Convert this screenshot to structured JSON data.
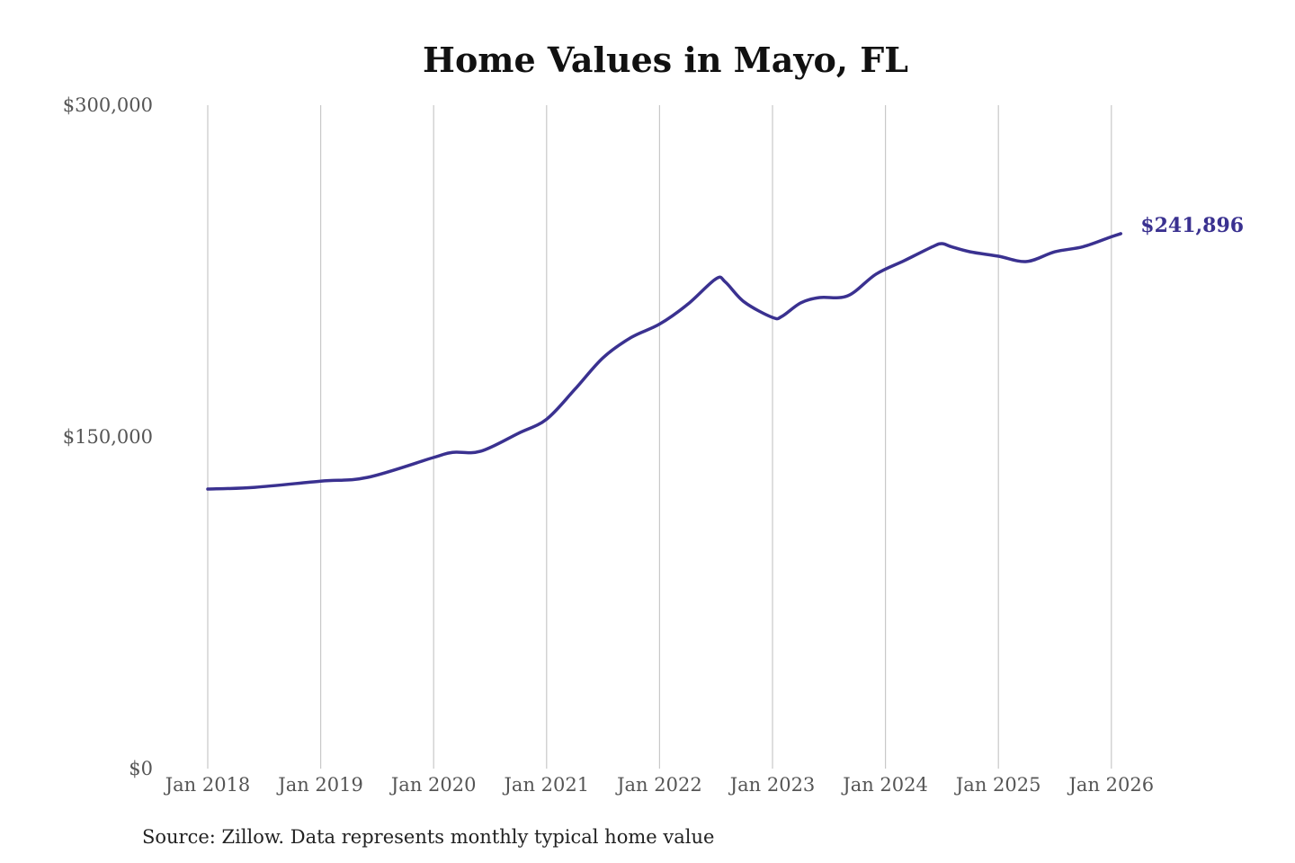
{
  "chart_data": {
    "type": "line",
    "title": "Home Values in Mayo, FL",
    "source": "Source: Zillow. Data represents monthly typical home value",
    "xlabel": "",
    "ylabel": "",
    "ylim": [
      0,
      300000
    ],
    "y_ticks": [
      0,
      150000,
      300000
    ],
    "y_tick_labels": [
      "$0",
      "$150,000",
      "$300,000"
    ],
    "x_ticks": [
      "2018-01",
      "2019-01",
      "2020-01",
      "2021-01",
      "2022-01",
      "2023-01",
      "2024-01",
      "2025-01",
      "2026-01"
    ],
    "x_tick_labels": [
      "Jan 2018",
      "Jan 2019",
      "Jan 2020",
      "Jan 2021",
      "Jan 2022",
      "Jan 2023",
      "Jan 2024",
      "Jan 2025",
      "Jan 2026"
    ],
    "grid": "vertical",
    "line_color": "#3a3190",
    "end_label": "$241,896",
    "series": [
      {
        "points": [
          [
            "2018-01",
            126400
          ],
          [
            "2018-06",
            127200
          ],
          [
            "2019-01",
            130000
          ],
          [
            "2019-06",
            131700
          ],
          [
            "2020-01",
            140700
          ],
          [
            "2020-03",
            143000
          ],
          [
            "2020-06",
            143500
          ],
          [
            "2020-10",
            151600
          ],
          [
            "2021-01",
            158000
          ],
          [
            "2021-04",
            171500
          ],
          [
            "2021-07",
            185800
          ],
          [
            "2021-10",
            195000
          ],
          [
            "2022-01",
            201000
          ],
          [
            "2022-04",
            210000
          ],
          [
            "2022-07",
            221500
          ],
          [
            "2022-08",
            220000
          ],
          [
            "2022-10",
            211000
          ],
          [
            "2023-01",
            204000
          ],
          [
            "2023-02",
            204500
          ],
          [
            "2023-04",
            210600
          ],
          [
            "2023-06",
            213000
          ],
          [
            "2023-09",
            213800
          ],
          [
            "2023-12",
            223600
          ],
          [
            "2024-03",
            229700
          ],
          [
            "2024-06",
            236000
          ],
          [
            "2024-07",
            237400
          ],
          [
            "2024-08",
            236000
          ],
          [
            "2024-10",
            233700
          ],
          [
            "2025-01",
            231700
          ],
          [
            "2025-04",
            229300
          ],
          [
            "2025-07",
            233700
          ],
          [
            "2025-10",
            236000
          ],
          [
            "2026-01",
            240500
          ],
          [
            "2026-02",
            241896
          ]
        ]
      }
    ]
  }
}
